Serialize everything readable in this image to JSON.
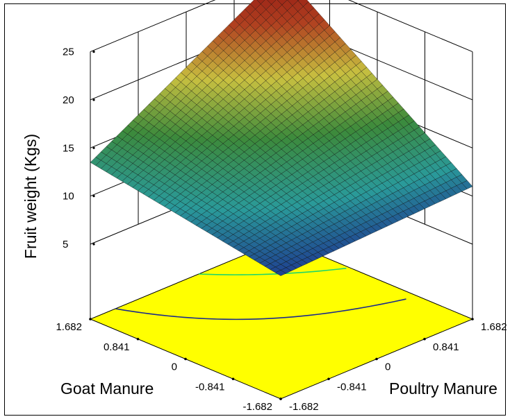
{
  "chart_data": {
    "type": "surface3d",
    "title": "",
    "zlabel": "Fruit weight (Kgs)",
    "xlabel": "Goat Manure",
    "ylabel": "Poultry Manure",
    "z_ticks": [
      "5",
      "10",
      "15",
      "20",
      "25"
    ],
    "x_ticks": [
      "1.682",
      "0.841",
      "0",
      "-0.841",
      "-1.682"
    ],
    "y_ticks": [
      "1.682",
      "0.841",
      "0",
      "-0.841",
      "-1.682"
    ],
    "x_range": [
      -1.682,
      1.682
    ],
    "y_range": [
      -1.682,
      1.682
    ],
    "zlim": [
      5,
      25
    ],
    "surface_corners": {
      "goat_low_poultry_low": 10.0,
      "goat_high_poultry_low": 13.5,
      "goat_low_poultry_high": 11.0,
      "goat_high_poultry_high": 25.0
    },
    "contour_floor_color": "#ffff00",
    "colormap": [
      "#1a1a8c",
      "#2a9a9a",
      "#3c8a3c",
      "#c8c040",
      "#b04020",
      "#8c1010"
    ],
    "grid": true
  }
}
